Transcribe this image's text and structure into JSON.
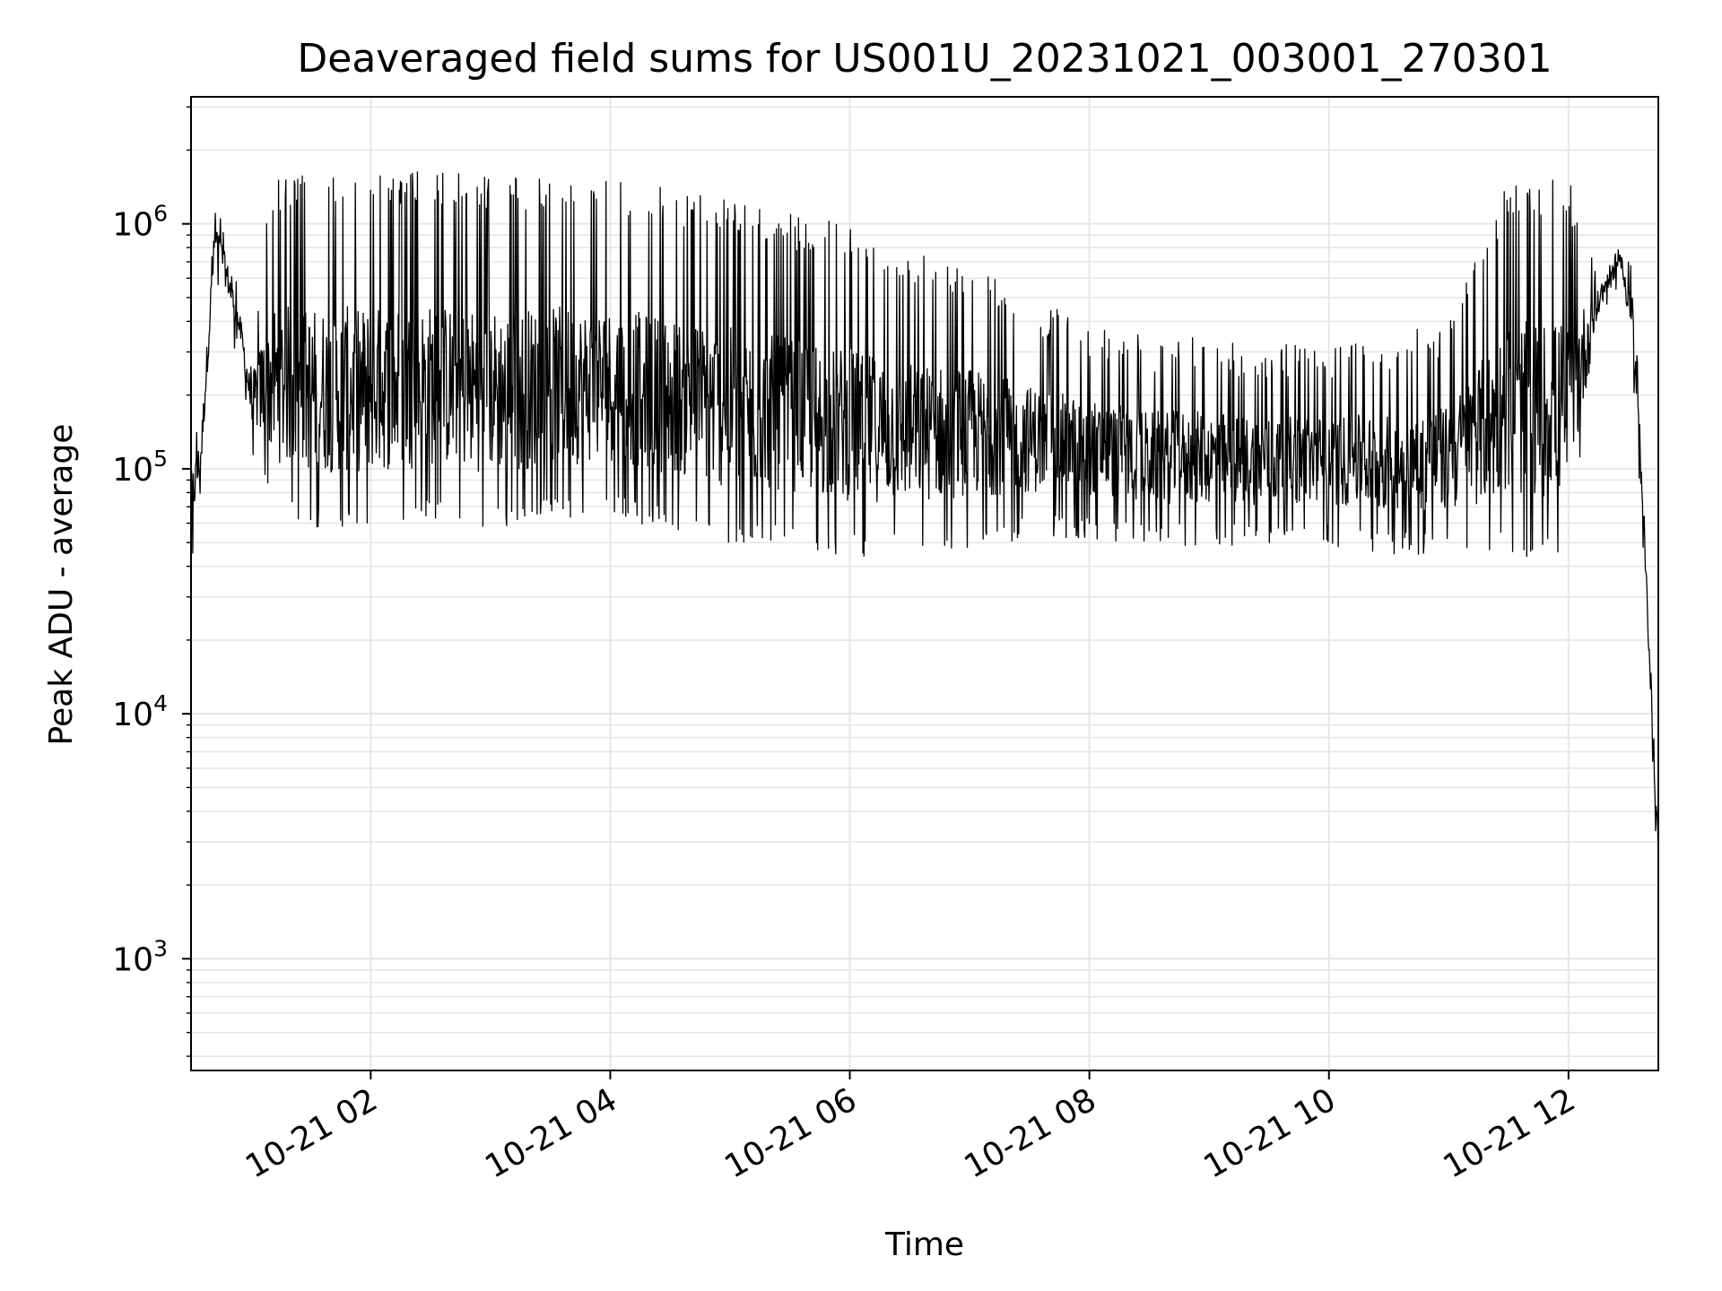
{
  "chart_data": {
    "type": "line",
    "title": "Deaveraged field sums for US001U_20231021_003001_270301",
    "xlabel": "Time",
    "ylabel": "Peak ADU - average",
    "yscale": "log",
    "grid": true,
    "line_color": "#000000",
    "grid_color": "#e6e6e6",
    "xlim": [
      "2023-10-21 00:30",
      "2023-10-21 12:45"
    ],
    "ylim": [
      350,
      3300000
    ],
    "x_ticks": [
      {
        "value": "2023-10-21 02:00",
        "label": "10-21 02"
      },
      {
        "value": "2023-10-21 04:00",
        "label": "10-21 04"
      },
      {
        "value": "2023-10-21 06:00",
        "label": "10-21 06"
      },
      {
        "value": "2023-10-21 08:00",
        "label": "10-21 08"
      },
      {
        "value": "2023-10-21 10:00",
        "label": "10-21 10"
      },
      {
        "value": "2023-10-21 12:00",
        "label": "10-21 12"
      }
    ],
    "y_ticks": [
      {
        "value": 1000,
        "base": "10",
        "exp": "3"
      },
      {
        "value": 10000,
        "base": "10",
        "exp": "4"
      },
      {
        "value": 100000,
        "base": "10",
        "exp": "5"
      },
      {
        "value": 1000000,
        "base": "10",
        "exp": "6"
      }
    ],
    "series": [
      {
        "x": [
          "2023-10-21 00:30",
          "2023-10-21 00:35",
          "2023-10-21 00:42",
          "2023-10-21 00:48",
          "2023-10-21 00:55",
          "2023-10-21 01:00",
          "2023-10-21 01:10",
          "2023-10-21 01:30",
          "2023-10-21 02:00",
          "2023-10-21 02:30",
          "2023-10-21 03:00",
          "2023-10-21 03:30",
          "2023-10-21 04:00",
          "2023-10-21 04:30",
          "2023-10-21 05:00",
          "2023-10-21 05:30",
          "2023-10-21 06:00",
          "2023-10-21 06:30",
          "2023-10-21 07:00",
          "2023-10-21 07:30",
          "2023-10-21 08:00",
          "2023-10-21 08:30",
          "2023-10-21 09:00",
          "2023-10-21 09:30",
          "2023-10-21 10:00",
          "2023-10-21 10:30",
          "2023-10-21 11:00",
          "2023-10-21 11:30",
          "2023-10-21 12:00",
          "2023-10-21 12:15",
          "2023-10-21 12:25",
          "2023-10-21 12:32",
          "2023-10-21 12:38",
          "2023-10-21 12:42",
          "2023-10-21 12:45"
        ],
        "low": [
          50000,
          90000,
          700000,
          500000,
          300000,
          150000,
          80000,
          70000,
          70000,
          75000,
          70000,
          75000,
          80000,
          70000,
          60000,
          60000,
          55000,
          55000,
          60000,
          65000,
          65000,
          60000,
          60000,
          60000,
          60000,
          55000,
          55000,
          55000,
          55000,
          400000,
          700000,
          300000,
          40000,
          8000,
          2000
        ],
        "high": [
          150000,
          180000,
          1400000,
          900000,
          500000,
          300000,
          1600000,
          1600000,
          1650000,
          1650000,
          1600000,
          1550000,
          1500000,
          1400000,
          1300000,
          1100000,
          1000000,
          800000,
          700000,
          500000,
          400000,
          350000,
          350000,
          320000,
          330000,
          350000,
          400000,
          1500000,
          1550000,
          650000,
          900000,
          800000,
          70000,
          15000,
          4000
        ]
      }
    ]
  }
}
